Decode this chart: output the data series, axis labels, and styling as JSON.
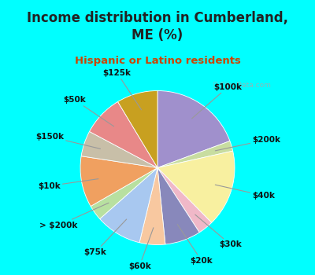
{
  "title": "Income distribution in Cumberland,\nME (%)",
  "subtitle": "Hispanic or Latino residents",
  "background_color": "#00FFFF",
  "chart_bg_start": "#c8eedd",
  "chart_bg_end": "#e0f8f0",
  "watermark": "City-Data.com",
  "slices": [
    {
      "label": "$100k",
      "value": 18,
      "color": "#a090cc"
    },
    {
      "label": "$200k",
      "value": 2,
      "color": "#c8dda0"
    },
    {
      "label": "$40k",
      "value": 15,
      "color": "#f8f0a0"
    },
    {
      "label": "$30k",
      "value": 3,
      "color": "#f0b8c8"
    },
    {
      "label": "$20k",
      "value": 7,
      "color": "#8888bb"
    },
    {
      "label": "$60k",
      "value": 5,
      "color": "#f8c8a0"
    },
    {
      "label": "$75k",
      "value": 9,
      "color": "#a8c8f0"
    },
    {
      "label": "> $200k",
      "value": 3,
      "color": "#b8e0a0"
    },
    {
      "label": "$10k",
      "value": 10,
      "color": "#f0a060"
    },
    {
      "label": "$150k",
      "value": 5,
      "color": "#c8bfa8"
    },
    {
      "label": "$50k",
      "value": 8,
      "color": "#e88888"
    },
    {
      "label": "$125k",
      "value": 8,
      "color": "#c8a020"
    }
  ],
  "label_fontsize": 7.5,
  "title_fontsize": 12,
  "subtitle_fontsize": 9.5,
  "title_color": "#222222",
  "subtitle_color": "#cc4400"
}
